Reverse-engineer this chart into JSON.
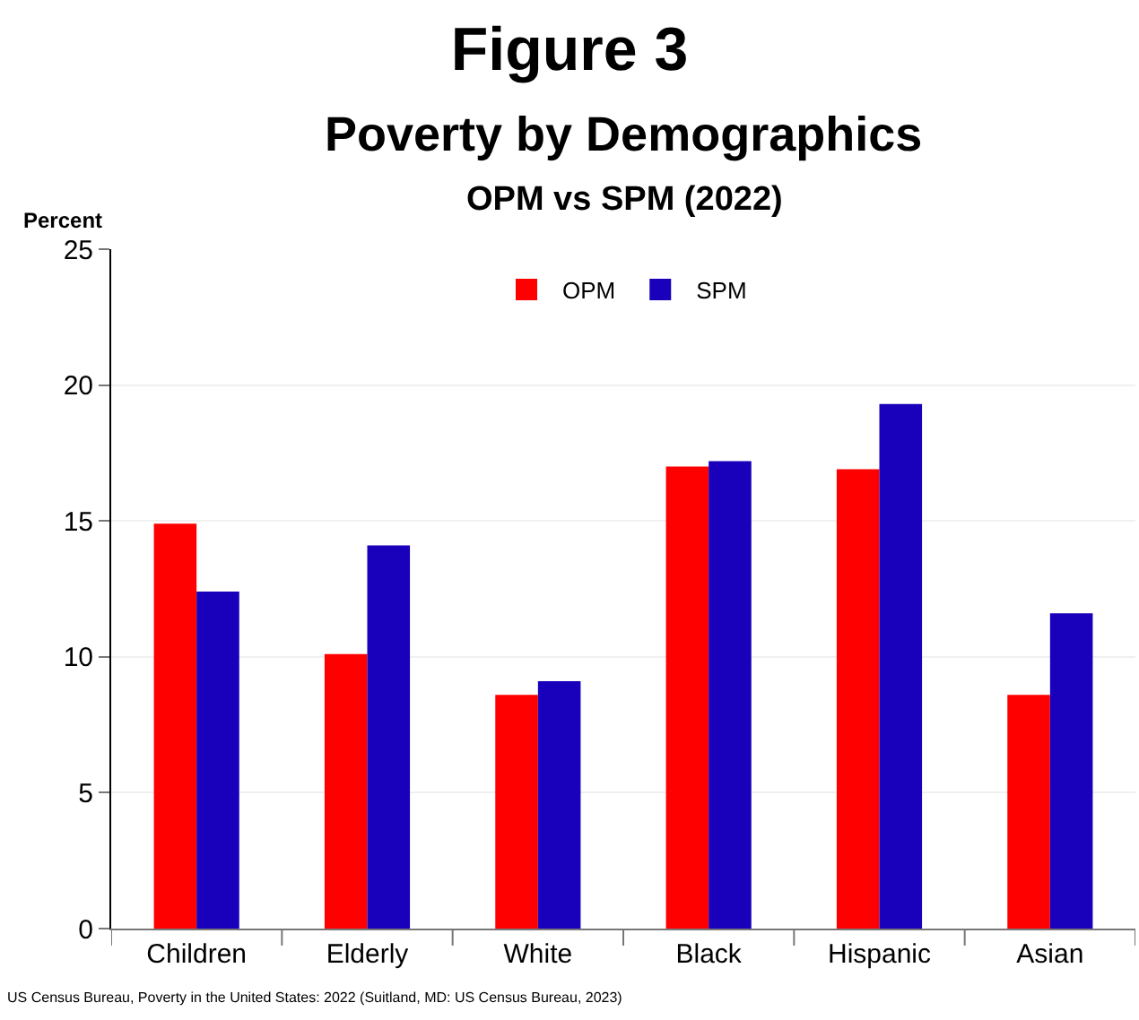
{
  "chart_data": {
    "type": "bar",
    "title": "Figure 3",
    "subtitle": "Poverty by Demographics\nOPM vs SPM (2022)",
    "ylabel": "Percent",
    "categories": [
      "Children",
      "Elderly",
      "White",
      "Black",
      "Hispanic",
      "Asian"
    ],
    "series": [
      {
        "name": "OPM",
        "color": "#ff0000",
        "values": [
          14.9,
          10.1,
          8.6,
          17.0,
          16.9,
          8.6
        ]
      },
      {
        "name": "SPM",
        "color": "#1900bb",
        "values": [
          12.4,
          14.1,
          9.1,
          17.2,
          19.3,
          11.6
        ]
      }
    ],
    "ylim": [
      0,
      25
    ],
    "yticks": [
      0,
      5,
      10,
      15,
      20,
      25
    ],
    "grid": "y",
    "legend": "top",
    "annotations": [
      "US Census Bureau, Poverty in the United States: 2022 (Suitland, MD: US Census Bureau, 2023)"
    ]
  }
}
